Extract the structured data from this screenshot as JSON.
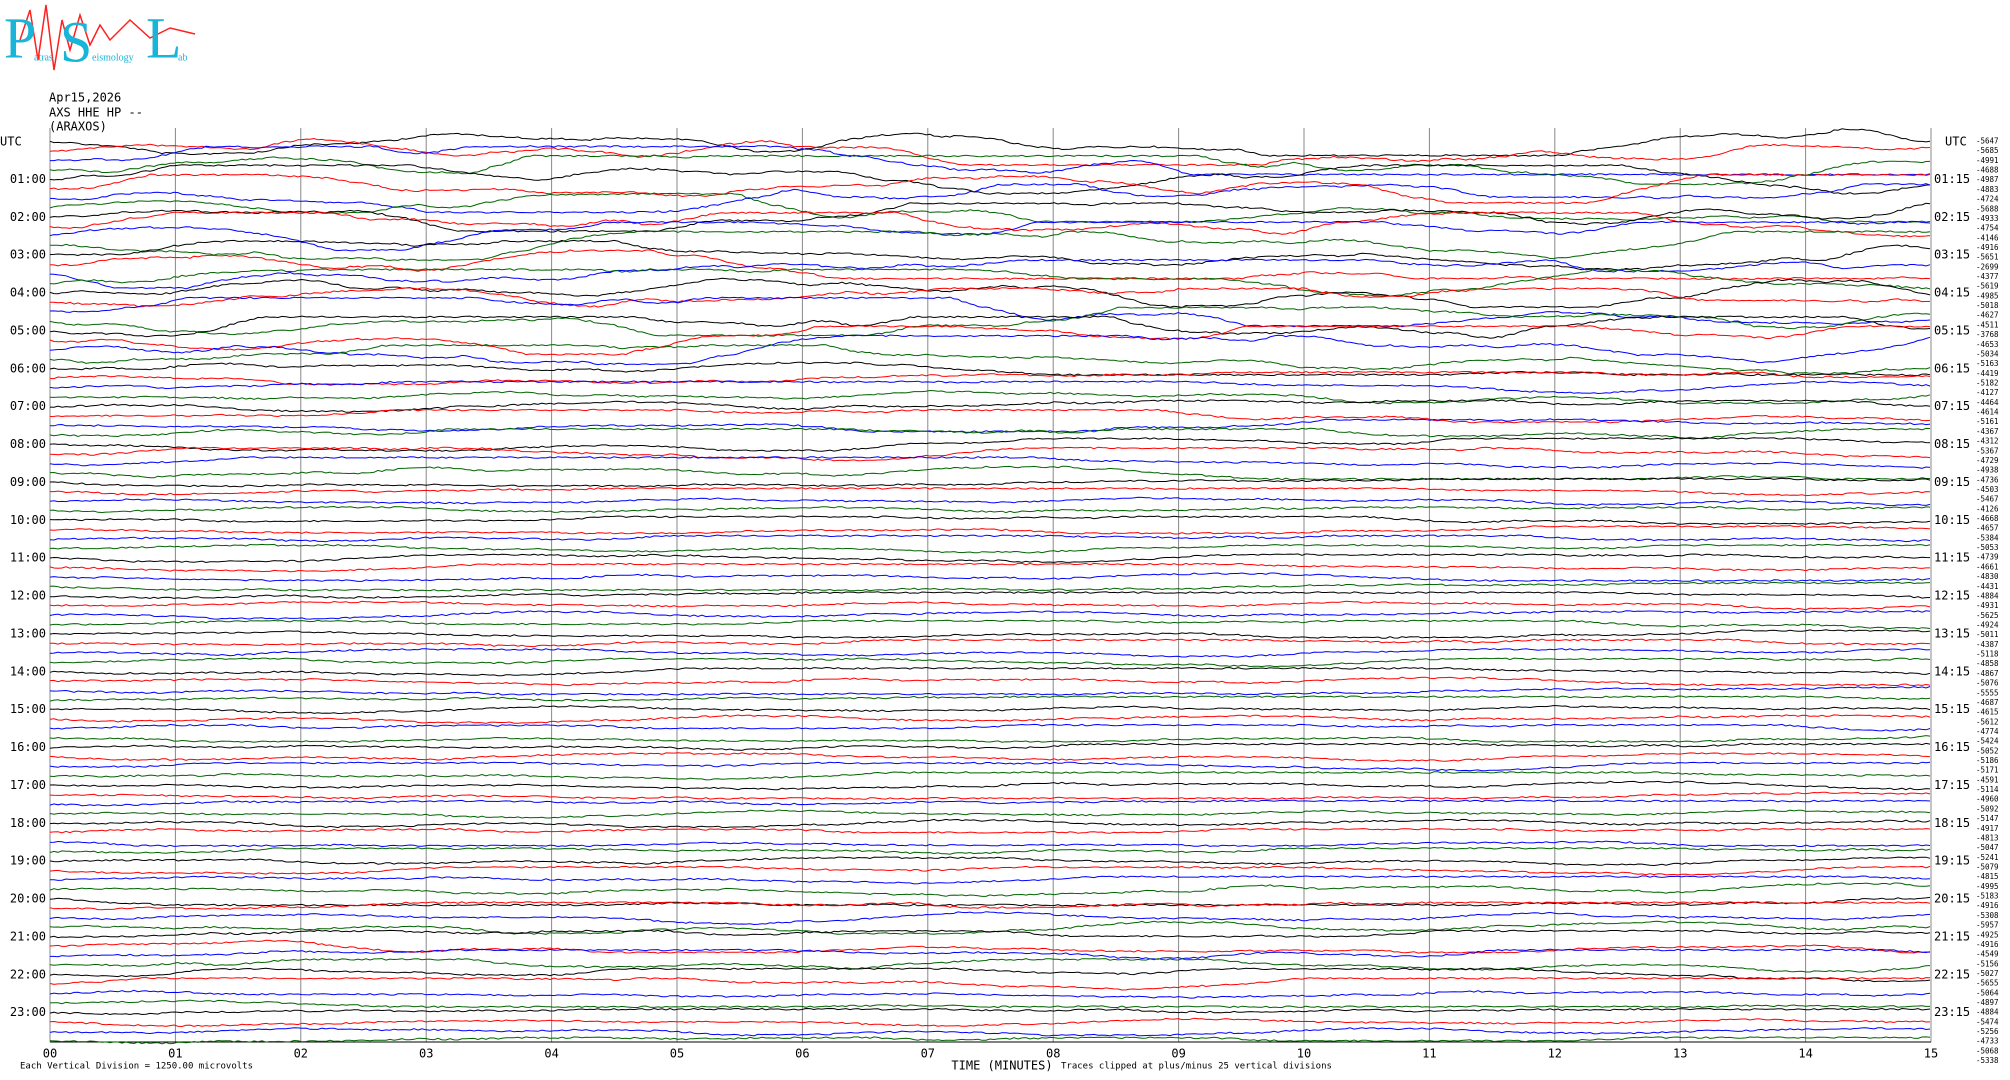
{
  "logo": {
    "letters": [
      "P",
      "S",
      "L"
    ],
    "words": [
      "atras",
      "eismology",
      "ab"
    ]
  },
  "header": {
    "date": "Apr15,2026",
    "station": "AXS HHE HP --",
    "location": "(ARAXOS)"
  },
  "utc_left": "UTC",
  "utc_right": "UTC",
  "left_labels": [
    "01:00",
    "02:00",
    "03:00",
    "04:00",
    "05:00",
    "06:00",
    "07:00",
    "08:00",
    "09:00",
    "10:00",
    "11:00",
    "12:00",
    "13:00",
    "14:00",
    "15:00",
    "16:00",
    "17:00",
    "18:00",
    "19:00",
    "20:00",
    "21:00",
    "22:00",
    "23:00"
  ],
  "right_labels": [
    "01:15",
    "02:15",
    "03:15",
    "04:15",
    "05:15",
    "06:15",
    "07:15",
    "08:15",
    "09:15",
    "10:15",
    "11:15",
    "12:15",
    "13:15",
    "14:15",
    "15:15",
    "16:15",
    "17:15",
    "18:15",
    "19:15",
    "20:15",
    "21:15",
    "22:15",
    "23:15"
  ],
  "trace_offsets": [
    -5647,
    -5685,
    -4991,
    -4688,
    -4987,
    -4883,
    -4724,
    -5688,
    -4933,
    -4754,
    -4146,
    -4916,
    -5651,
    -2699,
    -4377,
    -5619,
    -4985,
    -5018,
    -4627,
    -4511,
    -3768,
    -4653,
    -5034,
    -5163,
    -4419,
    -5182,
    -4127,
    -4464,
    -4614,
    -5161,
    -4367,
    -4312,
    -5367,
    -4729,
    -4938,
    -4736,
    -4503,
    -5467,
    -4126,
    -4668,
    -4657,
    -5384,
    -5053,
    -4739,
    -4661,
    -4830,
    -4431,
    -4884,
    -4931,
    -5625,
    -4924,
    -5011,
    -4387,
    -5118,
    -4858,
    -4867,
    -5076,
    -5555,
    -4687,
    -4615,
    -5612,
    -4774,
    -5424,
    -5052,
    -5186,
    -5171,
    -4591,
    -5114,
    -4960,
    -5092,
    -5147,
    -4917,
    -4813,
    -5047,
    -5241,
    -5079,
    -4815,
    -4995,
    -5183,
    -4916,
    -5308,
    -5957,
    -4925,
    -4916,
    -4549,
    -5156,
    -5027,
    -5655,
    -5064,
    -4897,
    -4884,
    -5474,
    -5256,
    -4733,
    -5068,
    -5338
  ],
  "trace_colors": [
    "#000000",
    "#ff0000",
    "#0000ff",
    "#006400"
  ],
  "x_ticks": [
    "00",
    "01",
    "02",
    "03",
    "04",
    "05",
    "06",
    "07",
    "08",
    "09",
    "10",
    "11",
    "12",
    "13",
    "14",
    "15"
  ],
  "x_title": "TIME (MINUTES)",
  "footer_left": "Each Vertical Division = 1250.00 microvolts",
  "footer_right": "Traces clipped at plus/minus 25 vertical divisions"
}
